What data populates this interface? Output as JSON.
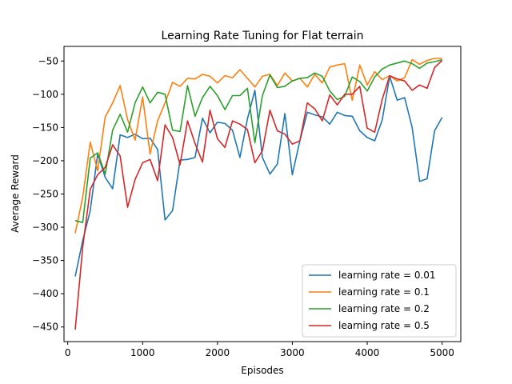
{
  "chart_data": {
    "type": "line",
    "title": "Learning Rate Tuning for Flat terrain",
    "xlabel": "Episodes",
    "ylabel": "Average Reward",
    "xlim": [
      -50,
      5250
    ],
    "ylim": [
      -472,
      -28
    ],
    "xticks": [
      0,
      1000,
      2000,
      3000,
      4000,
      5000
    ],
    "yticks": [
      -450,
      -400,
      -350,
      -300,
      -250,
      -200,
      -150,
      -100,
      -50
    ],
    "grid": false,
    "legend_position": "lower-right",
    "x": [
      100,
      200,
      300,
      400,
      500,
      600,
      700,
      800,
      900,
      1000,
      1100,
      1200,
      1300,
      1400,
      1500,
      1600,
      1700,
      1800,
      1900,
      2000,
      2100,
      2200,
      2300,
      2400,
      2500,
      2600,
      2700,
      2800,
      2900,
      3000,
      3100,
      3200,
      3300,
      3400,
      3500,
      3600,
      3700,
      3800,
      3900,
      4000,
      4100,
      4200,
      4300,
      4400,
      4500,
      4600,
      4700,
      4800,
      4900,
      5000
    ],
    "series": [
      {
        "name": "learning rate = 0.01",
        "color": "#1f77b4",
        "values": [
          -374,
          -320,
          -275,
          -190,
          -225,
          -242,
          -161,
          -165,
          -160,
          -167,
          -166,
          -183,
          -289,
          -275,
          -199,
          -198,
          -195,
          -136,
          -158,
          -142,
          -144,
          -154,
          -195,
          -137,
          -94,
          -195,
          -220,
          -205,
          -129,
          -221,
          -170,
          -127,
          -131,
          -134,
          -145,
          -127,
          -132,
          -133,
          -155,
          -165,
          -170,
          -139,
          -73,
          -109,
          -105,
          -150,
          -231,
          -227,
          -155,
          -135
        ]
      },
      {
        "name": "learning rate = 0.1",
        "color": "#ff7f0e",
        "values": [
          -309,
          -255,
          -172,
          -215,
          -134,
          -113,
          -87,
          -138,
          -169,
          -104,
          -190,
          -140,
          -113,
          -82,
          -88,
          -76,
          -77,
          -70,
          -73,
          -83,
          -72,
          -75,
          -63,
          -76,
          -89,
          -73,
          -70,
          -87,
          -68,
          -80,
          -76,
          -89,
          -70,
          -83,
          -59,
          -56,
          -54,
          -109,
          -56,
          -86,
          -66,
          -78,
          -72,
          -80,
          -75,
          -48,
          -55,
          -49,
          -46,
          -46
        ]
      },
      {
        "name": "learning rate = 0.2",
        "color": "#2ca02c",
        "values": [
          -290,
          -293,
          -196,
          -188,
          -220,
          -154,
          -130,
          -157,
          -113,
          -89,
          -113,
          -97,
          -100,
          -154,
          -156,
          -87,
          -133,
          -105,
          -88,
          -102,
          -123,
          -102,
          -102,
          -91,
          -173,
          -102,
          -71,
          -90,
          -88,
          -80,
          -76,
          -75,
          -68,
          -73,
          -95,
          -108,
          -103,
          -74,
          -81,
          -95,
          -74,
          -62,
          -56,
          -53,
          -50,
          -54,
          -61,
          -53,
          -51,
          -48
        ]
      },
      {
        "name": "learning rate = 0.5",
        "color": "#d62728",
        "values": [
          -454,
          -330,
          -243,
          -221,
          -210,
          -176,
          -193,
          -270,
          -228,
          -203,
          -198,
          -230,
          -146,
          -165,
          -206,
          -140,
          -174,
          -202,
          -124,
          -167,
          -180,
          -140,
          -145,
          -153,
          -203,
          -185,
          -124,
          -155,
          -160,
          -175,
          -170,
          -113,
          -122,
          -140,
          -101,
          -116,
          -100,
          -100,
          -88,
          -151,
          -157,
          -108,
          -72,
          -77,
          -80,
          -94,
          -86,
          -91,
          -60,
          -49
        ]
      }
    ]
  }
}
